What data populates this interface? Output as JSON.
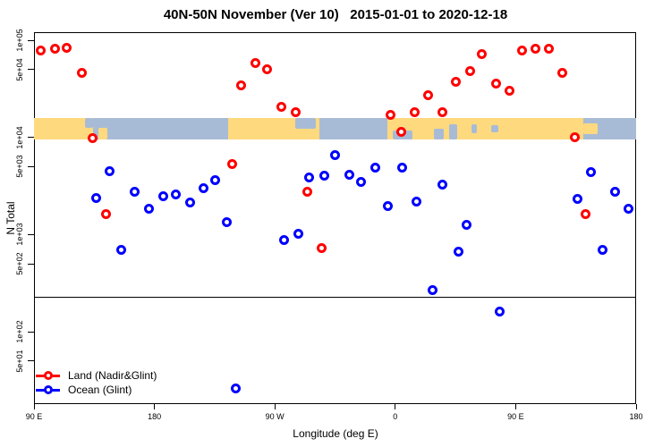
{
  "title": "40N-50N November (Ver 10)   2015-01-01 to 2020-12-18",
  "legend": {
    "items": [
      {
        "label": "Land (Nadir&Glint)",
        "color": "#ff0000"
      },
      {
        "label": "Ocean (Glint)",
        "color": "#0000ff"
      }
    ]
  },
  "chart_data": {
    "type": "scatter",
    "title": "40N-50N November (Ver 10)   2015-01-01 to 2020-12-18",
    "xlabel": "Longitude (deg E)",
    "ylabel": "N Total",
    "x_note": "axis spans 450 deg of longitude starting at 90E and wrapping past 180 through 90W, 0, 90E to 180; point lon values are in this unwrapped 90..540 coordinate",
    "x_axis": {
      "range": [
        90,
        540
      ],
      "ticks": [
        {
          "lon": 90,
          "label": "90 E"
        },
        {
          "lon": 180,
          "label": "180"
        },
        {
          "lon": 270,
          "label": "90 W"
        },
        {
          "lon": 360,
          "label": "0"
        },
        {
          "lon": 450,
          "label": "90 E"
        },
        {
          "lon": 540,
          "label": "180"
        }
      ]
    },
    "y_axis": {
      "scale": "log",
      "range": [
        18,
        121000
      ],
      "ticks": [
        {
          "n": 100000,
          "label": "1e+05"
        },
        {
          "n": 50000,
          "label": "5e+04"
        },
        {
          "n": 10000,
          "label": "1e+04"
        },
        {
          "n": 5000,
          "label": "5e+03"
        },
        {
          "n": 1000,
          "label": "1e+03"
        },
        {
          "n": 500,
          "label": "5e+02"
        },
        {
          "n": 100,
          "label": "1e+02"
        },
        {
          "n": 50,
          "label": "5e+01"
        }
      ]
    },
    "threshold_line_n": 230,
    "series": [
      {
        "name": "Land (Nadir&Glint)",
        "color": "#ff0000",
        "points": [
          [
            95.3,
            79000
          ],
          [
            105.4,
            81000
          ],
          [
            114.7,
            83000
          ],
          [
            126.1,
            46000
          ],
          [
            133.5,
            9800
          ],
          [
            143.5,
            1620
          ],
          [
            237.8,
            5300
          ],
          [
            245.1,
            34500
          ],
          [
            255.2,
            58000
          ],
          [
            263.9,
            50000
          ],
          [
            275.2,
            20500
          ],
          [
            285.3,
            18000
          ],
          [
            294.0,
            2750
          ],
          [
            304.7,
            720
          ],
          [
            356.2,
            17200
          ],
          [
            364.2,
            11500
          ],
          [
            374.2,
            18000
          ],
          [
            384.3,
            27000
          ],
          [
            395.0,
            18000
          ],
          [
            405.0,
            37000
          ],
          [
            415.7,
            48000
          ],
          [
            424.4,
            71500
          ],
          [
            435.1,
            36000
          ],
          [
            445.1,
            30000
          ],
          [
            454.5,
            79000
          ],
          [
            464.5,
            82000
          ],
          [
            474.5,
            82000
          ],
          [
            484.6,
            46000
          ],
          [
            493.9,
            10000
          ],
          [
            501.9,
            1620
          ]
        ]
      },
      {
        "name": "Ocean (Glint)",
        "color": "#0000ff",
        "points": [
          [
            136.8,
            2400
          ],
          [
            146.8,
            4450
          ],
          [
            154.9,
            700
          ],
          [
            164.9,
            2750
          ],
          [
            175.6,
            1850
          ],
          [
            186.3,
            2500
          ],
          [
            196.3,
            2600
          ],
          [
            206.4,
            2150
          ],
          [
            216.4,
            3000
          ],
          [
            225.1,
            3600
          ],
          [
            234.4,
            1350
          ],
          [
            240.5,
            26
          ],
          [
            276.6,
            870
          ],
          [
            287.3,
            1030
          ],
          [
            295.3,
            3900
          ],
          [
            306.7,
            4050
          ],
          [
            314.7,
            6600
          ],
          [
            325.4,
            4100
          ],
          [
            334.1,
            3450
          ],
          [
            344.8,
            4850
          ],
          [
            354.2,
            1950
          ],
          [
            364.9,
            4850
          ],
          [
            375.6,
            2200
          ],
          [
            387.6,
            270
          ],
          [
            395.0,
            3300
          ],
          [
            407.0,
            670
          ],
          [
            413.0,
            1250
          ],
          [
            437.8,
            160
          ],
          [
            496.0,
            2350
          ],
          [
            505.9,
            4350
          ],
          [
            514.6,
            700
          ],
          [
            524.0,
            2750
          ],
          [
            534.0,
            1850
          ]
        ]
      }
    ],
    "map_band": {
      "description": "latitude band map strip 40N-50N drawn across the plot",
      "n_top": 16000,
      "n_bottom": 9500,
      "land_color": "#ffd97e",
      "ocean_color": "#a8bbd6",
      "segments": [
        {
          "type": "land",
          "lon": [
            90,
            134.1
          ]
        },
        {
          "type": "ocean",
          "lon": [
            134.1,
            235.1
          ]
        },
        {
          "type": "land",
          "lon": [
            235.1,
            303.3
          ]
        },
        {
          "type": "ocean",
          "lon": [
            303.3,
            354.1
          ]
        },
        {
          "type": "land",
          "lon": [
            354.1,
            500.6
          ]
        },
        {
          "type": "ocean",
          "lon": [
            500.6,
            540
          ]
        }
      ],
      "details": [
        {
          "name": "sea-of-okhotsk",
          "type": "ocean",
          "lon": [
            128.1,
            134.1
          ],
          "vpos": "top",
          "vfrac": 0.45
        },
        {
          "name": "japan",
          "type": "land",
          "lon": [
            138.1,
            144.8
          ],
          "vpos": "bottom",
          "vfrac": 0.55
        },
        {
          "name": "great-lakes",
          "type": "ocean",
          "lon": [
            285.3,
            300.6
          ],
          "vpos": "top",
          "vfrac": 0.5
        },
        {
          "name": "mediterranean",
          "type": "ocean",
          "lon": [
            358.1,
            372.8
          ],
          "vpos": "bottom",
          "vfrac": 0.4
        },
        {
          "name": "black-sea",
          "type": "ocean",
          "lon": [
            388.9,
            396.3
          ],
          "vpos": "bottom",
          "vfrac": 0.5
        },
        {
          "name": "caspian-sea",
          "type": "ocean",
          "lon": [
            400.3,
            406.3
          ],
          "vpos": "bottom",
          "vfrac": 0.7
        },
        {
          "name": "aral-sea",
          "type": "ocean",
          "lon": [
            417.0,
            421.0
          ],
          "vpos": "middle",
          "vfrac": 0.4
        },
        {
          "name": "lake-balkhash",
          "type": "ocean",
          "lon": [
            431.7,
            437.1
          ],
          "vpos": "middle",
          "vfrac": 0.35
        },
        {
          "name": "sakhalin-hokkaido",
          "type": "land",
          "lon": [
            500.6,
            511.3
          ],
          "vpos": "middle",
          "vfrac": 0.5
        }
      ]
    }
  }
}
